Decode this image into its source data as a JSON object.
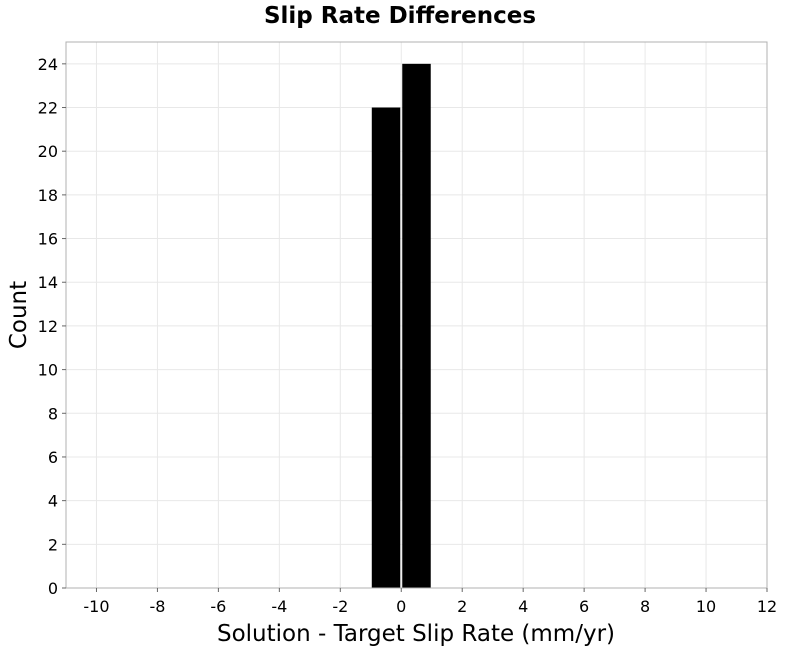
{
  "chart_data": {
    "type": "bar",
    "title": "Slip Rate Differences",
    "xlabel": "Solution - Target Slip Rate (mm/yr)",
    "ylabel": "Count",
    "xlim": [
      -11,
      12
    ],
    "ylim": [
      0,
      25
    ],
    "xticks": [
      -10,
      -8,
      -6,
      -4,
      -2,
      0,
      2,
      4,
      6,
      8,
      10,
      12
    ],
    "yticks": [
      0,
      2,
      4,
      6,
      8,
      10,
      12,
      14,
      16,
      18,
      20,
      22,
      24
    ],
    "bin_width": 1,
    "bins": [
      {
        "x": -0.5,
        "value": 22
      },
      {
        "x": 0.5,
        "value": 24
      }
    ],
    "grid": true,
    "bar_color": "#000000",
    "grid_color": "#e8e8e8",
    "frame_color": "#b0b0b0"
  }
}
